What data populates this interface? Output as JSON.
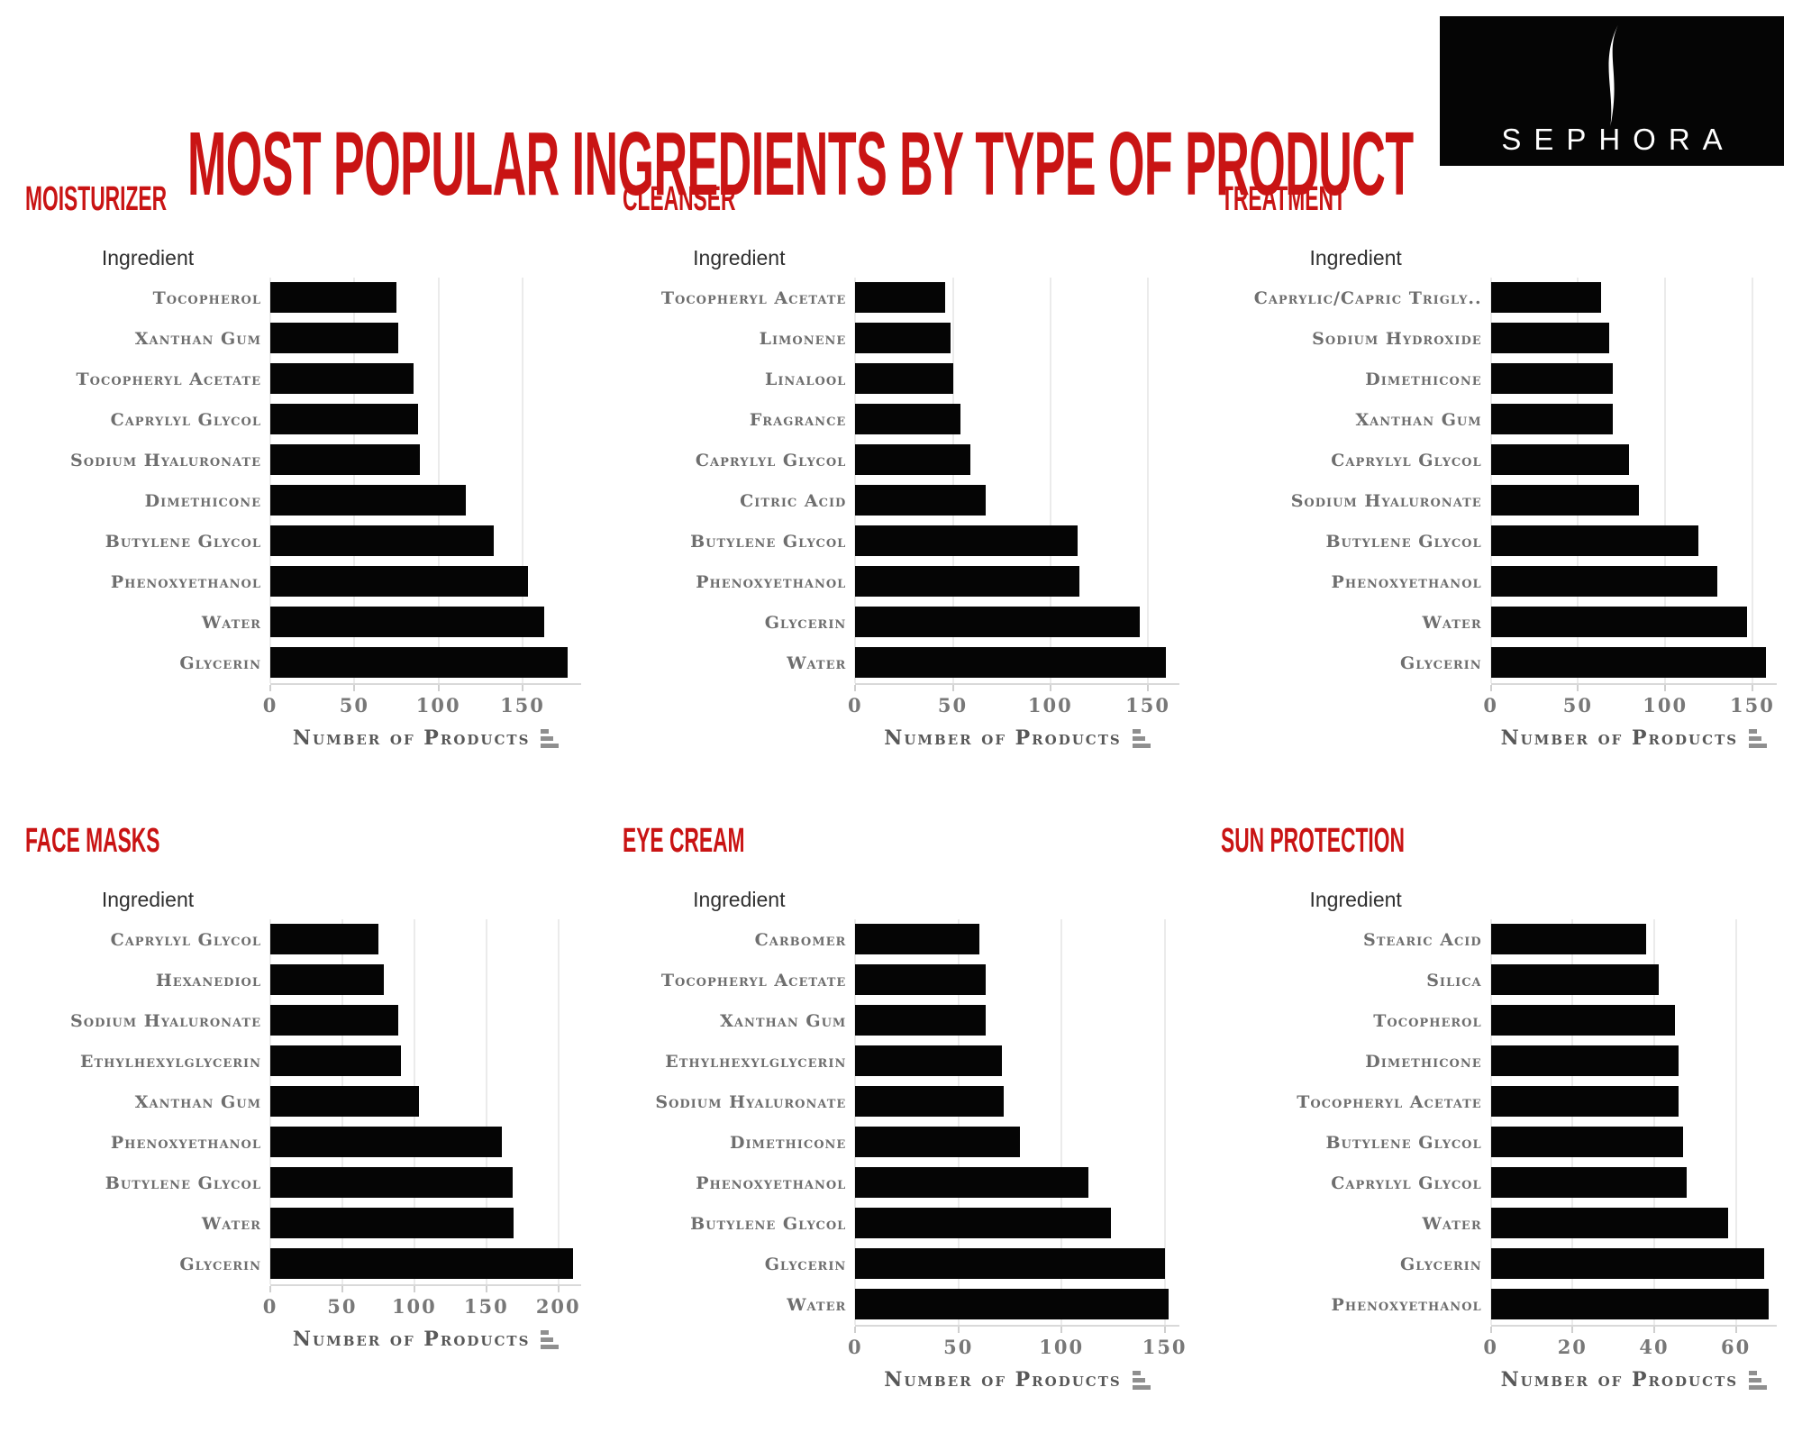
{
  "page": {
    "title": "MOST POPULAR INGREDIENTS BY TYPE OF PRODUCT",
    "brand": "SEPHORA",
    "accent_red": "#c91414",
    "bar_color": "#050505",
    "label_gray": "#6e6e6e"
  },
  "chart_data": [
    {
      "type": "bar",
      "orientation": "horizontal",
      "title": "MOISTURIZER",
      "ylabel": "Ingredient",
      "xlabel": "Number of Products",
      "ticks": [
        0,
        50,
        100,
        150
      ],
      "xlim": [
        0,
        185
      ],
      "grid": true,
      "categories": [
        "Tocopherol",
        "Xanthan Gum",
        "Tocopheryl Acetate",
        "Caprylyl Glycol",
        "Sodium Hyaluronate",
        "Dimethicone",
        "Butylene Glycol",
        "Phenoxyethanol",
        "Water",
        "Glycerin"
      ],
      "values": [
        75,
        76,
        85,
        88,
        89,
        116,
        133,
        153,
        163,
        177
      ]
    },
    {
      "type": "bar",
      "orientation": "horizontal",
      "title": "CLEANSER",
      "ylabel": "Ingredient",
      "xlabel": "Number of Products",
      "ticks": [
        0,
        50,
        100,
        150
      ],
      "xlim": [
        0,
        166
      ],
      "grid": true,
      "categories": [
        "Tocopheryl Acetate",
        "Limonene",
        "Linalool",
        "Fragrance",
        "Caprylyl Glycol",
        "Citric Acid",
        "Butylene Glycol",
        "Phenoxyethanol",
        "Glycerin",
        "Water"
      ],
      "values": [
        46,
        49,
        50,
        54,
        59,
        67,
        114,
        115,
        146,
        159
      ]
    },
    {
      "type": "bar",
      "orientation": "horizontal",
      "title": "TREATMENT",
      "ylabel": "Ingredient",
      "xlabel": "Number of Products",
      "ticks": [
        0,
        50,
        100,
        150
      ],
      "xlim": [
        0,
        164
      ],
      "grid": true,
      "categories": [
        "Caprylic/Capric Trigly..",
        "Sodium Hydroxide",
        "Dimethicone",
        "Xanthan Gum",
        "Caprylyl Glycol",
        "Sodium Hyaluronate",
        "Butylene Glycol",
        "Phenoxyethanol",
        "Water",
        "Glycerin"
      ],
      "values": [
        63,
        68,
        70,
        70,
        79,
        85,
        119,
        130,
        147,
        158
      ]
    },
    {
      "type": "bar",
      "orientation": "horizontal",
      "title": "FACE MASKS",
      "ylabel": "Ingredient",
      "xlabel": "Number of Products",
      "ticks": [
        0,
        50,
        100,
        150,
        200
      ],
      "xlim": [
        0,
        216
      ],
      "grid": true,
      "categories": [
        "Caprylyl Glycol",
        "Hexanediol",
        "Sodium Hyaluronate",
        "Ethylhexylglycerin",
        "Xanthan Gum",
        "Phenoxyethanol",
        "Butylene Glycol",
        "Water",
        "Glycerin"
      ],
      "values": [
        75,
        79,
        89,
        91,
        103,
        161,
        168,
        169,
        210
      ]
    },
    {
      "type": "bar",
      "orientation": "horizontal",
      "title": "EYE CREAM",
      "ylabel": "Ingredient",
      "xlabel": "Number of Products",
      "ticks": [
        0,
        50,
        100,
        150
      ],
      "xlim": [
        0,
        157
      ],
      "grid": true,
      "categories": [
        "Carbomer",
        "Tocopheryl Acetate",
        "Xanthan Gum",
        "Ethylhexylglycerin",
        "Sodium Hyaluronate",
        "Dimethicone",
        "Phenoxyethanol",
        "Butylene Glycol",
        "Glycerin",
        "Water"
      ],
      "values": [
        60,
        63,
        63,
        71,
        72,
        80,
        113,
        124,
        150,
        152
      ]
    },
    {
      "type": "bar",
      "orientation": "horizontal",
      "title": "SUN PROTECTION",
      "ylabel": "Ingredient",
      "xlabel": "Number of Products",
      "ticks": [
        0,
        20,
        40,
        60
      ],
      "xlim": [
        0,
        70
      ],
      "grid": true,
      "categories": [
        "Stearic Acid",
        "Silica",
        "Tocopherol",
        "Dimethicone",
        "Tocopheryl Acetate",
        "Butylene Glycol",
        "Caprylyl Glycol",
        "Water",
        "Glycerin",
        "Phenoxyethanol"
      ],
      "values": [
        38,
        41,
        45,
        46,
        46,
        47,
        48,
        58,
        67,
        68
      ]
    }
  ]
}
